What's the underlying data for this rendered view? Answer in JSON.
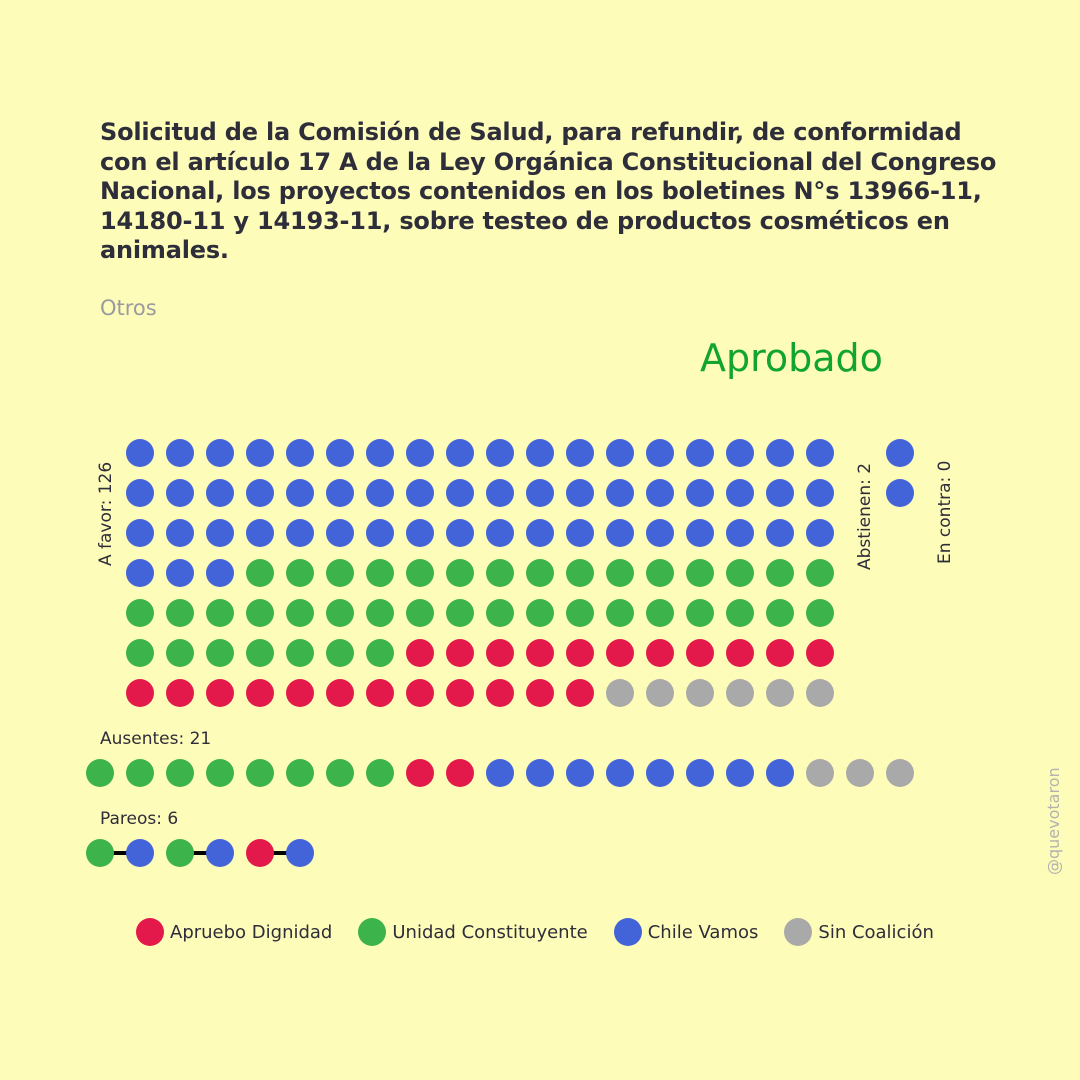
{
  "title": "Solicitud de la Comisión de Salud, para refundir, de conformidad con el artículo 17 A de la Ley Orgánica Constitucional del Congreso Nacional, los proyectos contenidos en los boletines N°s 13966-11, 14180-11 y 14193-11, sobre testeo de productos cosméticos en animales.",
  "category": "Otros",
  "result": "Aprobado",
  "colors": {
    "background": "#FDFCB9",
    "result": "#12A52E",
    "apruebo_dignidad": "#E3194B",
    "unidad_constituyente": "#3CB44B",
    "chile_vamos": "#4363D8",
    "sin_coalicion": "#A9A9A9"
  },
  "labels": {
    "a_favor": "A favor: 126",
    "abstienen": "Abstienen: 2",
    "en_contra": "En contra: 0",
    "ausentes": "Ausentes: 21",
    "pareos": "Pareos: 6"
  },
  "watermark": "@quevotaron",
  "legend": [
    {
      "label": "Apruebo Dignidad",
      "color": "#E3194B"
    },
    {
      "label": "Unidad Constituyente",
      "color": "#3CB44B"
    },
    {
      "label": "Chile Vamos",
      "color": "#4363D8"
    },
    {
      "label": "Sin Coalición",
      "color": "#A9A9A9"
    }
  ],
  "chart_data": {
    "type": "waffle",
    "result": "Aprobado",
    "series_order": [
      "Chile Vamos",
      "Unidad Constituyente",
      "Apruebo Dignidad",
      "Sin Coalición"
    ],
    "groups": [
      {
        "name": "A favor",
        "total": 126,
        "counts": {
          "Chile Vamos": 57,
          "Unidad Constituyente": 40,
          "Apruebo Dignidad": 23,
          "Sin Coalición": 6
        }
      },
      {
        "name": "Abstienen",
        "total": 2,
        "counts": {
          "Chile Vamos": 2
        }
      },
      {
        "name": "En contra",
        "total": 0,
        "counts": {}
      },
      {
        "name": "Ausentes",
        "total": 21,
        "counts": {
          "Unidad Constituyente": 8,
          "Apruebo Dignidad": 2,
          "Chile Vamos": 8,
          "Sin Coalición": 3
        }
      }
    ],
    "pareos": {
      "total": 6,
      "pairs": [
        [
          "Unidad Constituyente",
          "Chile Vamos"
        ],
        [
          "Unidad Constituyente",
          "Chile Vamos"
        ],
        [
          "Apruebo Dignidad",
          "Chile Vamos"
        ]
      ]
    }
  }
}
